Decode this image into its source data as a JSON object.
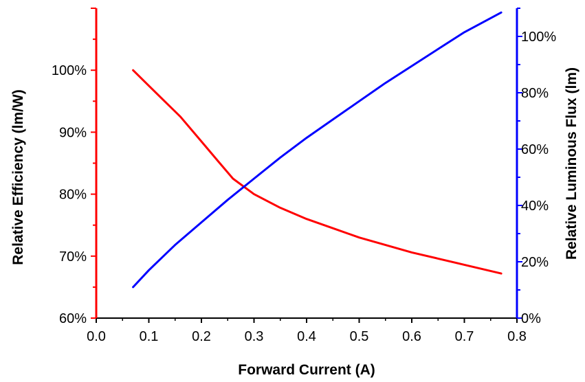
{
  "chart_data": {
    "type": "line",
    "title": "",
    "xlabel": "Forward Current (A)",
    "ylabel_left": "Relative Efficiency (lm/W)",
    "ylabel_right": "Relative Luminous Flux (lm)",
    "xlim": [
      0.0,
      0.8
    ],
    "ylim_left": [
      60,
      110
    ],
    "ylim_right": [
      0,
      110
    ],
    "x_ticks": [
      "0.0",
      "0.1",
      "0.2",
      "0.3",
      "0.4",
      "0.5",
      "0.6",
      "0.7",
      "0.8"
    ],
    "y_left_ticks": [
      "60%",
      "70%",
      "80%",
      "90%",
      "100%"
    ],
    "y_right_ticks": [
      "0%",
      "20%",
      "40%",
      "60%",
      "80%",
      "100%"
    ],
    "grid": false,
    "legend": "none",
    "series": [
      {
        "axis": "left",
        "color": "#ff0000",
        "x": [
          0.07,
          0.1,
          0.13,
          0.16,
          0.2,
          0.23,
          0.26,
          0.3,
          0.35,
          0.4,
          0.45,
          0.5,
          0.55,
          0.6,
          0.65,
          0.7,
          0.77
        ],
        "values": [
          100,
          97.5,
          95,
          92.5,
          88.5,
          85.5,
          82.5,
          80,
          77.8,
          76,
          74.5,
          73,
          71.8,
          70.6,
          69.6,
          68.6,
          67.2
        ]
      },
      {
        "axis": "right",
        "color": "#0000ff",
        "x": [
          0.07,
          0.1,
          0.15,
          0.2,
          0.25,
          0.3,
          0.35,
          0.4,
          0.45,
          0.5,
          0.55,
          0.6,
          0.65,
          0.7,
          0.77
        ],
        "values": [
          11,
          17,
          26,
          34,
          42,
          49.5,
          57,
          64,
          70.5,
          77,
          83.5,
          89.5,
          95.5,
          101.5,
          108.5
        ]
      }
    ]
  }
}
